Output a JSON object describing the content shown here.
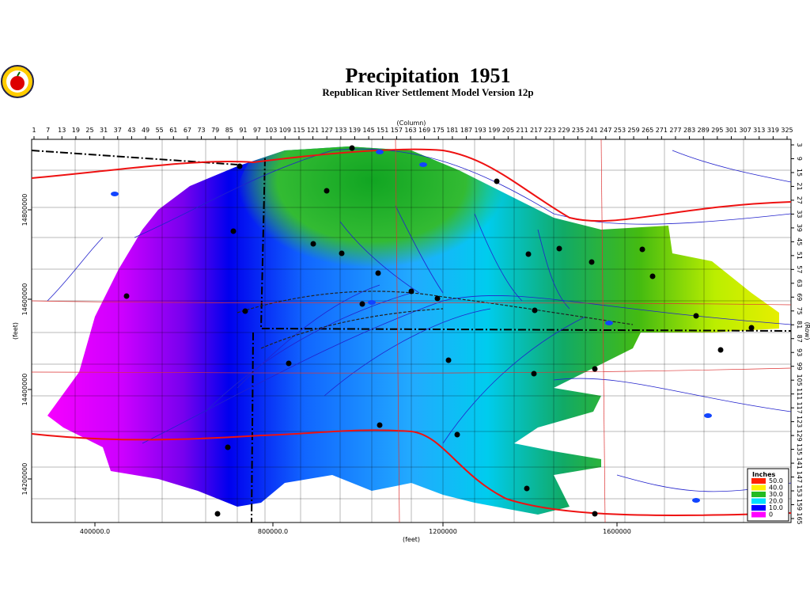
{
  "header": {
    "title": "Precipitation  1951",
    "subtitle": "Republican River Settlement Model Version 12p"
  },
  "axes": {
    "column_label": "(Column)",
    "columns": [
      1,
      7,
      13,
      19,
      25,
      31,
      37,
      43,
      49,
      55,
      61,
      67,
      73,
      79,
      85,
      91,
      97,
      103,
      109,
      115,
      121,
      127,
      133,
      139,
      145,
      151,
      157,
      163,
      169,
      175,
      181,
      187,
      193,
      199,
      205,
      211,
      217,
      223,
      229,
      235,
      241,
      247,
      253,
      259,
      265,
      271,
      277,
      283,
      289,
      295,
      301,
      307,
      313,
      319,
      325
    ],
    "row_label": "(Row)",
    "rows": [
      3,
      9,
      15,
      21,
      27,
      33,
      39,
      45,
      51,
      57,
      63,
      69,
      75,
      81,
      87,
      93,
      99,
      105,
      111,
      117,
      123,
      129,
      135,
      141,
      147,
      153,
      159,
      165
    ],
    "x_label": "(feet)",
    "x_ticks": [
      "400000.0",
      "800000.0",
      "1200000",
      "1600000"
    ],
    "y_label": "(feet)",
    "y_ticks": [
      "14800000",
      "14600000",
      "14400000",
      "14200000"
    ]
  },
  "legend": {
    "title": "Inches",
    "items": [
      {
        "label": "50.0",
        "color": "#ff2200"
      },
      {
        "label": "40.0",
        "color": "#ffee00"
      },
      {
        "label": "30.0",
        "color": "#22bb22"
      },
      {
        "label": "20.0",
        "color": "#00ddff"
      },
      {
        "label": "10.0",
        "color": "#0000ff"
      },
      {
        "label": "0",
        "color": "#ff00ff"
      }
    ]
  }
}
